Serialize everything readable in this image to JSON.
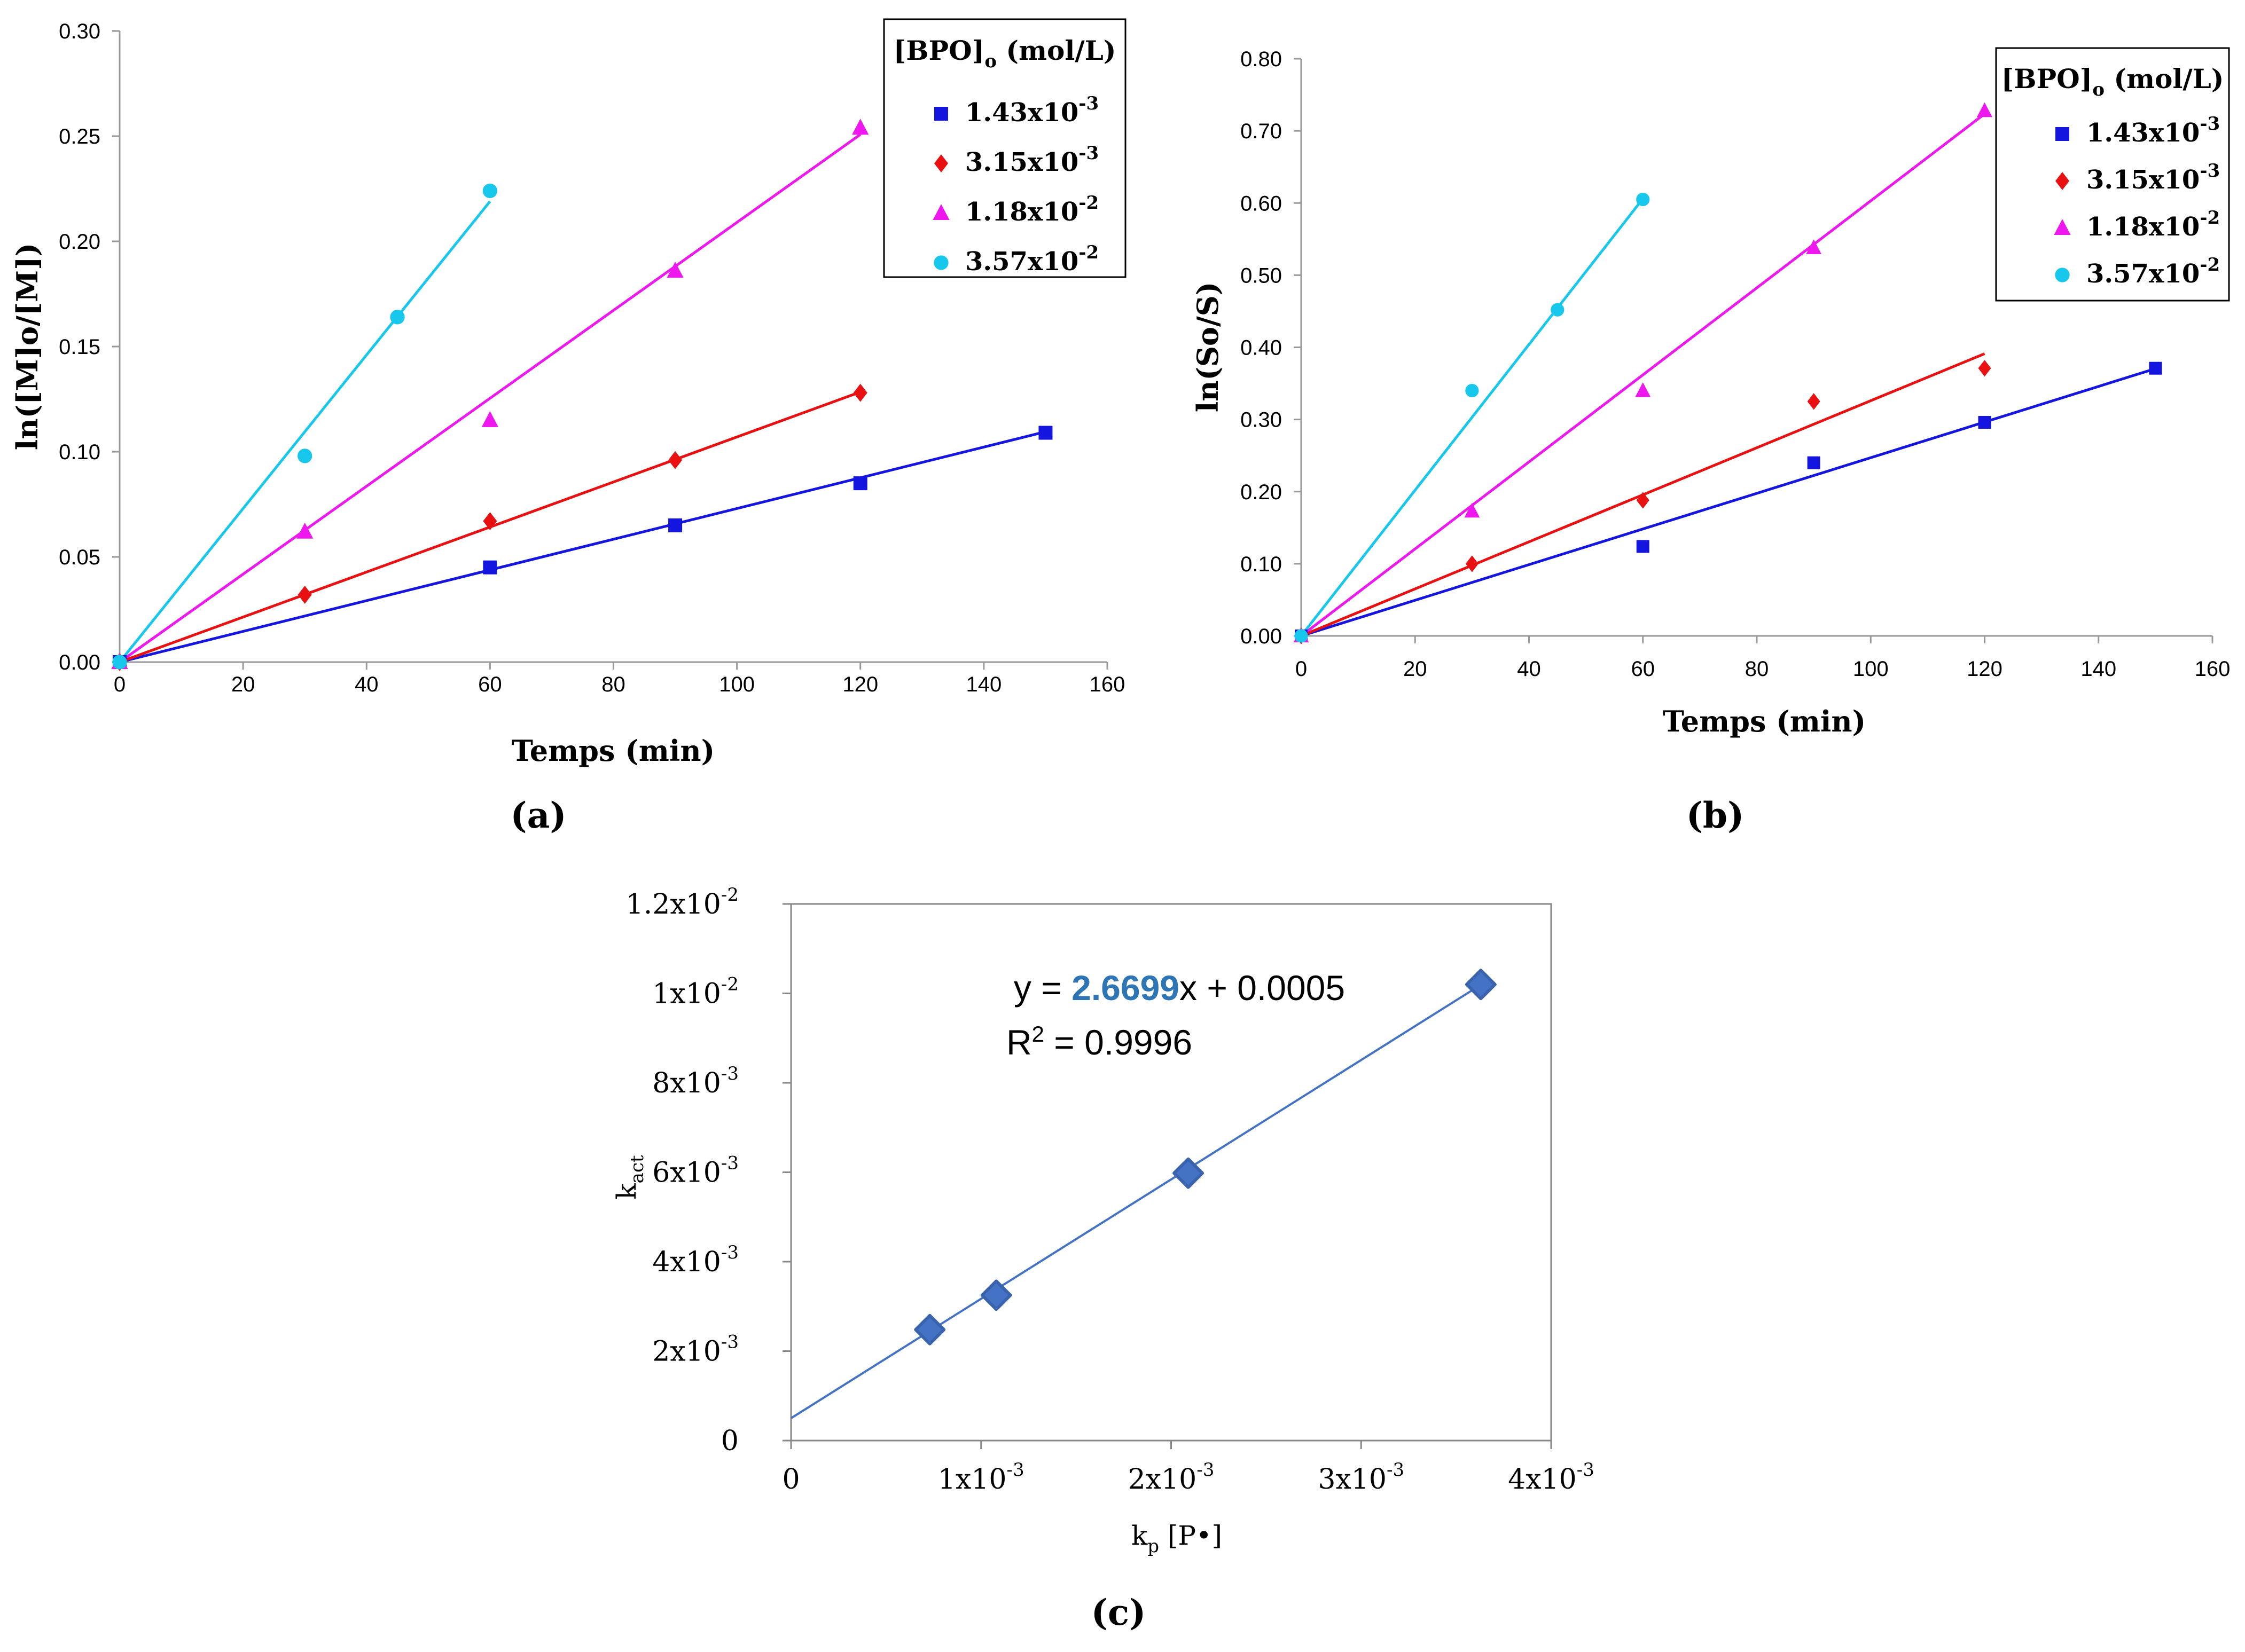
{
  "chart_data": [
    {
      "type": "scatter",
      "panel_label": "(a)",
      "xlabel": "Temps (min)",
      "ylabel": "ln([M]o/[M])",
      "xlim": [
        0,
        160
      ],
      "ylim": [
        0,
        0.3
      ],
      "xticks": [
        "0",
        "20",
        "40",
        "60",
        "80",
        "100",
        "120",
        "140",
        "160"
      ],
      "yticks": [
        "0.00",
        "0.05",
        "0.10",
        "0.15",
        "0.20",
        "0.25",
        "0.30"
      ],
      "legend_title": {
        "main": "[BPO]",
        "sub": "o",
        "unit": " (mol/L)"
      },
      "series": [
        {
          "name": "1.43x10-3",
          "base": "1.43x10",
          "exp": "-3",
          "color": "#1515e0",
          "marker": "square",
          "x": [
            0,
            60,
            90,
            120,
            150
          ],
          "y": [
            0,
            0.045,
            0.065,
            0.085,
            0.109
          ],
          "fit_slope": 0.00073
        },
        {
          "name": "3.15x10-3",
          "base": "3.15x10",
          "exp": "-3",
          "color": "#e81010",
          "marker": "diamond",
          "x": [
            0,
            30,
            60,
            90,
            120
          ],
          "y": [
            0,
            0.032,
            0.067,
            0.096,
            0.128
          ],
          "fit_slope": 0.00107
        },
        {
          "name": "1.18x10-2",
          "base": "1.18x10",
          "exp": "-2",
          "color": "#ee18ee",
          "marker": "triangle",
          "x": [
            0,
            30,
            60,
            90,
            120
          ],
          "y": [
            0,
            0.062,
            0.115,
            0.186,
            0.254
          ],
          "fit_slope": 0.00209
        },
        {
          "name": "3.57x10-2",
          "base": "3.57x10",
          "exp": "-2",
          "color": "#18c8ec",
          "marker": "circle",
          "x": [
            0,
            30,
            45,
            60
          ],
          "y": [
            0,
            0.098,
            0.164,
            0.224
          ],
          "fit_slope": 0.00365
        }
      ]
    },
    {
      "type": "scatter",
      "panel_label": "(b)",
      "xlabel": "Temps (min)",
      "ylabel": "ln(So/S)",
      "xlim": [
        0,
        160
      ],
      "ylim": [
        0,
        0.8
      ],
      "xticks": [
        "0",
        "20",
        "40",
        "60",
        "80",
        "100",
        "120",
        "140",
        "160"
      ],
      "yticks": [
        "0.00",
        "0.10",
        "0.20",
        "0.30",
        "0.40",
        "0.50",
        "0.60",
        "0.70",
        "0.80"
      ],
      "legend_title": {
        "main": "[BPO]",
        "sub": "o",
        "unit": " (mol/L)"
      },
      "series": [
        {
          "name": "1.43x10-3",
          "base": "1.43x10",
          "exp": "-3",
          "color": "#1515e0",
          "marker": "square",
          "x": [
            0,
            60,
            90,
            120,
            150
          ],
          "y": [
            0,
            0.124,
            0.24,
            0.296,
            0.371
          ],
          "fit_slope": 0.00247
        },
        {
          "name": "3.15x10-3",
          "base": "3.15x10",
          "exp": "-3",
          "color": "#e81010",
          "marker": "diamond",
          "x": [
            0,
            30,
            60,
            90,
            120
          ],
          "y": [
            0,
            0.1,
            0.188,
            0.325,
            0.371
          ],
          "fit_slope": 0.00326
        },
        {
          "name": "1.18x10-2",
          "base": "1.18x10",
          "exp": "-2",
          "color": "#ee18ee",
          "marker": "triangle",
          "x": [
            0,
            30,
            60,
            90,
            120
          ],
          "y": [
            0,
            0.173,
            0.34,
            0.538,
            0.728
          ],
          "fit_slope": 0.00603
        },
        {
          "name": "3.57x10-2",
          "base": "3.57x10",
          "exp": "-2",
          "color": "#18c8ec",
          "marker": "circle",
          "x": [
            0,
            30,
            45,
            60
          ],
          "y": [
            0,
            0.34,
            0.452,
            0.605
          ],
          "fit_slope": 0.0101
        }
      ]
    },
    {
      "type": "scatter",
      "panel_label": "(c)",
      "xlabel": {
        "main": "k",
        "sub": "p",
        "rest": " [P•]"
      },
      "ylabel": {
        "main": "k",
        "sub": "act"
      },
      "xlim": [
        0,
        0.004
      ],
      "ylim": [
        0,
        0.012
      ],
      "xticks": [
        {
          "base": "0",
          "exp": ""
        },
        {
          "base": "1x10",
          "exp": "-3"
        },
        {
          "base": "2x10",
          "exp": "-3"
        },
        {
          "base": "3x10",
          "exp": "-3"
        },
        {
          "base": "4x10",
          "exp": "-3"
        }
      ],
      "yticks": [
        {
          "base": "0",
          "exp": ""
        },
        {
          "base": "2x10",
          "exp": "-3"
        },
        {
          "base": "4x10",
          "exp": "-3"
        },
        {
          "base": "6x10",
          "exp": "-3"
        },
        {
          "base": "8x10",
          "exp": "-3"
        },
        {
          "base": "1x10",
          "exp": "-2"
        },
        {
          "base": "1.2x10",
          "exp": "-2"
        }
      ],
      "points": {
        "x": [
          0.00073,
          0.00108,
          0.00209,
          0.00363
        ],
        "y": [
          0.00248,
          0.00325,
          0.00598,
          0.0102
        ]
      },
      "fit": {
        "slope": 2.6699,
        "intercept": 0.0005
      },
      "equation": {
        "prefix": "y = ",
        "slope": "2.6699",
        "suffix": "x + 0.0005"
      },
      "r2": {
        "label": "R",
        "sup": "2",
        "rest": " = 0.9996"
      },
      "color": "#4472c4",
      "slope_color": "#2e75b6"
    }
  ]
}
